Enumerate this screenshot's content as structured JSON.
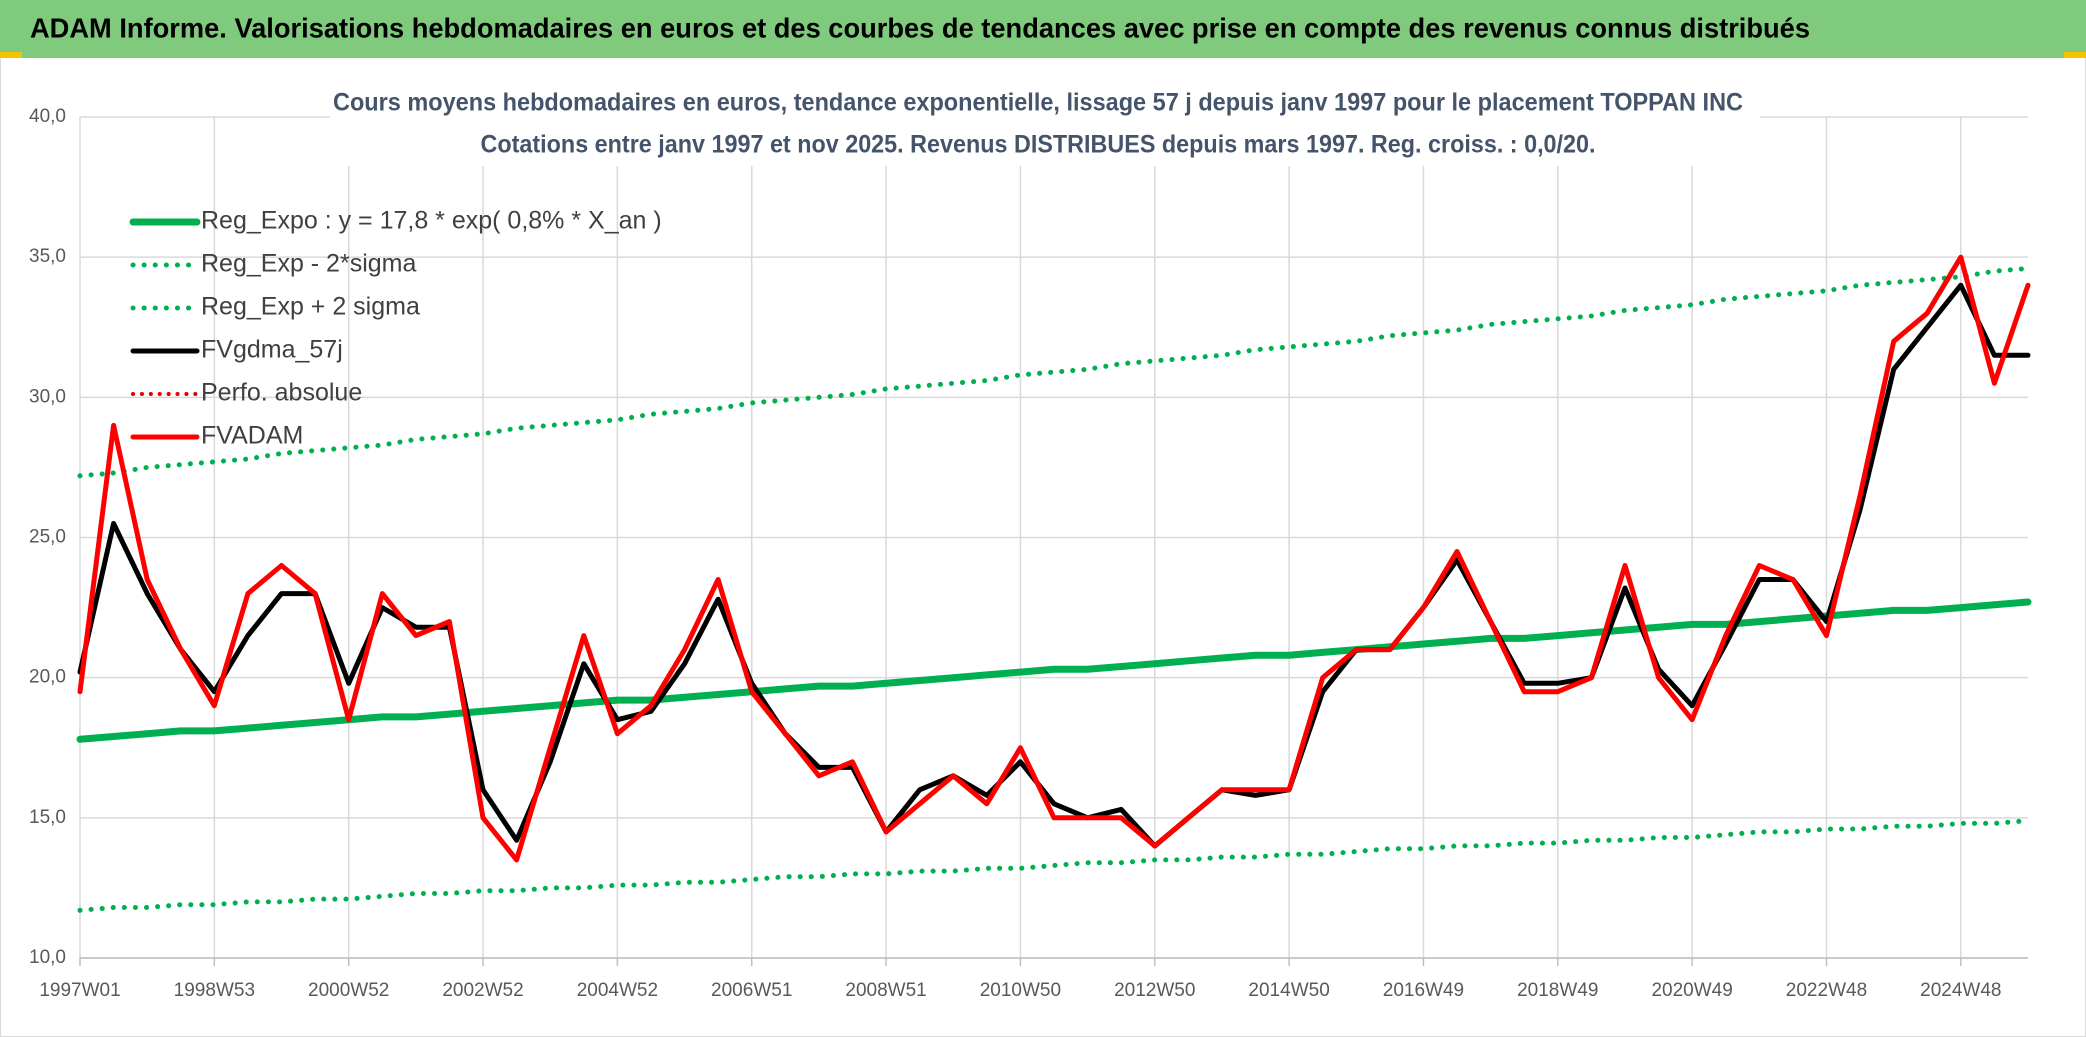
{
  "banner": "ADAM Informe. Valorisations hebdomadaires en euros et des courbes de tendances avec prise en compte des revenus connus distribués",
  "chart_data": {
    "type": "line",
    "title": "Cours moyens hebdomadaires en euros, tendance exponentielle, lissage 57 j depuis janv 1997 pour le placement TOPPAN INC",
    "subtitle": "Cotations entre janv 1997 et nov 2025. Revenus DISTRIBUES depuis mars 1997. Reg. croiss. : 0,0/20.",
    "categories": [
      "1997W01",
      null,
      null,
      null,
      "1998W53",
      null,
      null,
      null,
      "2000W52",
      null,
      null,
      null,
      "2002W52",
      null,
      null,
      null,
      "2004W52",
      null,
      null,
      null,
      "2006W51",
      null,
      null,
      null,
      "2008W51",
      null,
      null,
      null,
      "2010W50",
      null,
      null,
      null,
      "2012W50",
      null,
      null,
      null,
      "2014W50",
      null,
      null,
      null,
      "2016W49",
      null,
      null,
      null,
      "2018W49",
      null,
      null,
      null,
      "2020W49",
      null,
      null,
      null,
      "2022W48",
      null,
      null,
      null,
      "2024W48",
      null,
      null
    ],
    "ylim": [
      10,
      40
    ],
    "yticks": [
      {
        "value": 10,
        "label": "10,0"
      },
      {
        "value": 15,
        "label": "15,0"
      },
      {
        "value": 20,
        "label": "20,0"
      },
      {
        "value": 25,
        "label": "25,0"
      },
      {
        "value": 30,
        "label": "30,0"
      },
      {
        "value": 35,
        "label": "35,0"
      },
      {
        "value": 40,
        "label": "40,0"
      }
    ],
    "grid": true,
    "legend": "top-left",
    "series": [
      {
        "name": "Reg_Expo : y = 17,8 * exp( 0,8% *  X_an )",
        "color": "#00b050",
        "style": "solid",
        "width": 7,
        "values": [
          17.8,
          17.9,
          18.0,
          18.1,
          18.1,
          18.2,
          18.3,
          18.4,
          18.5,
          18.6,
          18.6,
          18.7,
          18.8,
          18.9,
          19.0,
          19.1,
          19.2,
          19.2,
          19.3,
          19.4,
          19.5,
          19.6,
          19.7,
          19.7,
          19.8,
          19.9,
          20.0,
          20.1,
          20.2,
          20.3,
          20.3,
          20.4,
          20.5,
          20.6,
          20.7,
          20.8,
          20.8,
          20.9,
          21.0,
          21.1,
          21.2,
          21.3,
          21.4,
          21.4,
          21.5,
          21.6,
          21.7,
          21.8,
          21.9,
          21.9,
          22.0,
          22.1,
          22.2,
          22.3,
          22.4,
          22.4,
          22.5,
          22.6,
          22.7
        ]
      },
      {
        "name": "Reg_Exp - 2*sigma",
        "color": "#00b050",
        "style": "dotted",
        "width": 5,
        "values": [
          11.7,
          11.8,
          11.8,
          11.9,
          11.9,
          12.0,
          12.0,
          12.1,
          12.1,
          12.2,
          12.3,
          12.3,
          12.4,
          12.4,
          12.5,
          12.5,
          12.6,
          12.6,
          12.7,
          12.7,
          12.8,
          12.9,
          12.9,
          13.0,
          13.0,
          13.1,
          13.1,
          13.2,
          13.2,
          13.3,
          13.4,
          13.4,
          13.5,
          13.5,
          13.6,
          13.6,
          13.7,
          13.7,
          13.8,
          13.9,
          13.9,
          14.0,
          14.0,
          14.1,
          14.1,
          14.2,
          14.2,
          14.3,
          14.3,
          14.4,
          14.5,
          14.5,
          14.6,
          14.6,
          14.7,
          14.7,
          14.8,
          14.8,
          14.9
        ]
      },
      {
        "name": "Reg_Exp + 2 sigma",
        "color": "#00b050",
        "style": "dotted",
        "width": 5,
        "values": [
          27.2,
          27.3,
          27.5,
          27.6,
          27.7,
          27.8,
          28.0,
          28.1,
          28.2,
          28.3,
          28.5,
          28.6,
          28.7,
          28.9,
          29.0,
          29.1,
          29.2,
          29.4,
          29.5,
          29.6,
          29.8,
          29.9,
          30.0,
          30.1,
          30.3,
          30.4,
          30.5,
          30.6,
          30.8,
          30.9,
          31.0,
          31.2,
          31.3,
          31.4,
          31.5,
          31.7,
          31.8,
          31.9,
          32.0,
          32.2,
          32.3,
          32.4,
          32.6,
          32.7,
          32.8,
          32.9,
          33.1,
          33.2,
          33.3,
          33.5,
          33.6,
          33.7,
          33.8,
          34.0,
          34.1,
          34.2,
          34.3,
          34.5,
          34.6
        ]
      },
      {
        "name": "FVgdma_57j",
        "color": "#000000",
        "style": "solid",
        "width": 5,
        "values": [
          20.2,
          25.5,
          23,
          21,
          19.5,
          21.5,
          23,
          23,
          19.8,
          22.5,
          21.8,
          21.8,
          16,
          14.2,
          17,
          20.5,
          18.5,
          18.8,
          20.5,
          22.8,
          19.8,
          18,
          16.8,
          16.8,
          14.5,
          16,
          16.5,
          15.8,
          17,
          15.5,
          15,
          15.3,
          14,
          15,
          16,
          15.8,
          16,
          19.5,
          21,
          21,
          22.5,
          24.2,
          22,
          19.8,
          19.8,
          20,
          23.2,
          20.3,
          19,
          21.2,
          23.5,
          23.5,
          22,
          26,
          31,
          32.5,
          34,
          31.5,
          31.5
        ]
      },
      {
        "name": "Perfo. absolue",
        "color": "#e00000",
        "style": "dotted",
        "width": 4,
        "values": [
          null,
          null,
          null,
          null,
          null,
          null,
          null,
          null,
          null,
          null,
          null,
          null,
          null,
          null,
          null,
          null,
          null,
          null,
          null,
          null,
          null,
          null,
          null,
          null,
          null,
          null,
          null,
          null,
          null,
          null,
          null,
          null,
          null,
          null,
          null,
          null,
          null,
          null,
          null,
          null,
          null,
          null,
          null,
          null,
          null,
          null,
          null,
          null,
          null,
          null,
          null,
          null,
          null,
          null,
          null,
          null,
          null,
          null,
          null
        ]
      },
      {
        "name": "FVADAM",
        "color": "#ff0000",
        "style": "solid",
        "width": 5,
        "values": [
          19.5,
          29,
          23.5,
          21,
          19,
          23,
          24,
          23,
          18.5,
          23,
          21.5,
          22,
          15,
          13.5,
          17.5,
          21.5,
          18,
          19,
          21,
          23.5,
          19.5,
          18,
          16.5,
          17,
          14.5,
          15.5,
          16.5,
          15.5,
          17.5,
          15,
          15,
          15,
          14,
          15,
          16,
          16,
          16,
          20,
          21,
          21,
          22.5,
          24.5,
          22,
          19.5,
          19.5,
          20,
          24,
          20,
          18.5,
          21.5,
          24,
          23.5,
          21.5,
          26.5,
          32,
          33,
          35,
          30.5,
          34
        ]
      }
    ]
  }
}
